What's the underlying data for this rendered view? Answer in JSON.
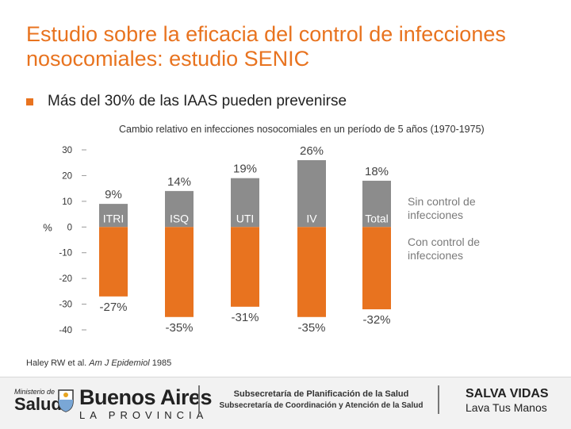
{
  "title": "Estudio sobre la eficacia del control de infecciones nosocomiales: estudio SENIC",
  "bullet": "Más del 30% de las IAAS pueden prevenirse",
  "colors": {
    "accent": "#e8731f",
    "gray_bar": "#8c8c8c"
  },
  "chart_data": {
    "type": "bar",
    "title": "Cambio relativo en infecciones nosocomiales en un período de 5 años (1970-1975)",
    "ylabel": "%",
    "ylim": [
      -40,
      30
    ],
    "yticks": [
      30,
      20,
      10,
      0,
      -10,
      -20,
      -30,
      -40
    ],
    "categories": [
      "ITRI",
      "ISQ",
      "UTI",
      "IV",
      "Total"
    ],
    "series": [
      {
        "name": "Sin control de infecciones",
        "values": [
          9,
          14,
          19,
          26,
          18
        ],
        "labels": [
          "9%",
          "14%",
          "19%",
          "26%",
          "18%"
        ]
      },
      {
        "name": "Con control de infecciones",
        "values": [
          -27,
          -35,
          -31,
          -35,
          -32
        ],
        "labels": [
          "-27%",
          "-35%",
          "-31%",
          "-35%",
          "-32%"
        ]
      }
    ],
    "legend_position": "right"
  },
  "citation": {
    "authors": "Haley RW et al. ",
    "journal": "Am J Epidemiol",
    "year": " 1985"
  },
  "footer": {
    "ministerio_small": "Ministerio de",
    "ministerio_big": "Salud",
    "ba_name": "Buenos Aires",
    "ba_province": "LA PROVINCIA",
    "subsec_line1": "Subsecretaría de Planificación de la Salud",
    "subsec_line2": "Subsecretaría de Coordinación y Atención de la Salud",
    "slogan_line1": "SALVA VIDAS",
    "slogan_line2": "Lava Tus Manos"
  }
}
